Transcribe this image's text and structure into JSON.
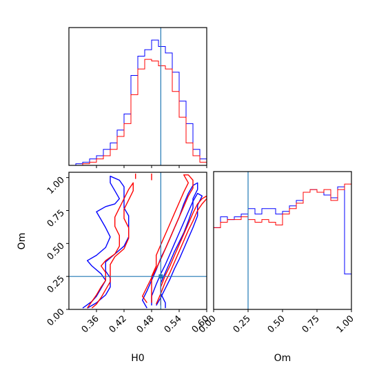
{
  "chart_data": {
    "type": "corner",
    "title": "",
    "truth": {
      "H0": 0.5,
      "Om": 0.25
    },
    "colors": {
      "red": "#ff0000",
      "blue": "#0000ff",
      "truth_line": "#1f77b4",
      "axes": "#000000"
    },
    "panels": [
      {
        "id": "hist-H0",
        "type": "histogram",
        "xlim": [
          0.3,
          0.6
        ],
        "xticks": [
          0.36,
          0.42,
          0.48,
          0.54,
          0.6
        ],
        "bins": [
          0.3,
          0.315,
          0.33,
          0.345,
          0.36,
          0.375,
          0.39,
          0.405,
          0.42,
          0.435,
          0.45,
          0.465,
          0.48,
          0.495,
          0.51,
          0.525,
          0.54,
          0.555,
          0.57,
          0.585,
          0.6
        ],
        "series": [
          {
            "name": "",
            "color": "blue",
            "counts": [
              0,
              1,
              2,
              4,
              6,
              10,
              14,
              22,
              32,
              56,
              68,
              72,
              78,
              74,
              70,
              58,
              40,
              26,
              10,
              4
            ]
          },
          {
            "name": "",
            "color": "red",
            "counts": [
              0,
              0,
              1,
              2,
              4,
              6,
              10,
              18,
              26,
              44,
              60,
              66,
              65,
              62,
              60,
              46,
              30,
              14,
              6,
              2
            ]
          }
        ]
      },
      {
        "id": "hist-Om",
        "type": "histogram",
        "xlabel": "Om",
        "xlim": [
          0.0,
          1.0
        ],
        "xticks": [
          0.0,
          0.25,
          0.5,
          0.75,
          1.0
        ],
        "tick_labels": [
          "0.00",
          "0.25",
          "0.50",
          "0.75",
          "1.00"
        ],
        "bins": [
          0.0,
          0.05,
          0.1,
          0.15,
          0.2,
          0.25,
          0.3,
          0.35,
          0.4,
          0.45,
          0.5,
          0.55,
          0.6,
          0.65,
          0.7,
          0.75,
          0.8,
          0.85,
          0.9,
          0.95,
          1.0
        ],
        "series": [
          {
            "name": "",
            "color": "blue",
            "counts": [
              60,
              68,
              66,
              68,
              70,
              74,
              70,
              74,
              74,
              70,
              72,
              76,
              80,
              86,
              88,
              86,
              84,
              82,
              90,
              26
            ]
          },
          {
            "name": "",
            "color": "red",
            "counts": [
              60,
              64,
              66,
              66,
              68,
              66,
              64,
              66,
              64,
              62,
              70,
              74,
              78,
              86,
              88,
              86,
              88,
              80,
              88,
              92
            ]
          }
        ]
      },
      {
        "id": "contour-H0-Om",
        "type": "contour",
        "xlabel": "H0",
        "ylabel": "Om",
        "xlim": [
          0.3,
          0.6
        ],
        "ylim": [
          0.0,
          1.04
        ],
        "xticks": [
          0.36,
          0.42,
          0.48,
          0.54,
          0.6
        ],
        "xtick_labels": [
          "0.36",
          "0.42",
          "0.48",
          "0.54",
          "0.60"
        ],
        "yticks": [
          0.0,
          0.25,
          0.5,
          0.75,
          1.0
        ],
        "ytick_labels": [
          "0.00",
          "0.25",
          "0.50",
          "0.75",
          "1.00"
        ],
        "contours": [
          {
            "color": "blue",
            "points": [
              [
                0.33,
                0.01
              ],
              [
                0.35,
                0.06
              ],
              [
                0.36,
                0.1
              ],
              [
                0.37,
                0.16
              ],
              [
                0.38,
                0.22
              ],
              [
                0.37,
                0.27
              ],
              [
                0.35,
                0.33
              ],
              [
                0.34,
                0.37
              ],
              [
                0.36,
                0.41
              ],
              [
                0.38,
                0.47
              ],
              [
                0.39,
                0.55
              ],
              [
                0.38,
                0.62
              ],
              [
                0.37,
                0.68
              ],
              [
                0.36,
                0.74
              ],
              [
                0.38,
                0.78
              ],
              [
                0.4,
                0.8
              ],
              [
                0.41,
                0.84
              ],
              [
                0.4,
                0.9
              ],
              [
                0.39,
                0.96
              ],
              [
                0.39,
                1.01
              ],
              [
                0.41,
                0.98
              ],
              [
                0.42,
                0.93
              ],
              [
                0.42,
                0.86
              ],
              [
                0.42,
                0.77
              ],
              [
                0.43,
                0.71
              ],
              [
                0.43,
                0.63
              ],
              [
                0.43,
                0.55
              ],
              [
                0.42,
                0.48
              ],
              [
                0.4,
                0.42
              ],
              [
                0.38,
                0.36
              ],
              [
                0.38,
                0.29
              ],
              [
                0.39,
                0.24
              ],
              [
                0.39,
                0.17
              ],
              [
                0.38,
                0.11
              ],
              [
                0.36,
                0.05
              ],
              [
                0.34,
                0.01
              ]
            ]
          },
          {
            "color": "blue",
            "points": [
              [
                0.47,
                0.01
              ],
              [
                0.46,
                0.07
              ],
              [
                0.47,
                0.14
              ],
              [
                0.48,
                0.22
              ],
              [
                0.49,
                0.3
              ],
              [
                0.5,
                0.39
              ],
              [
                0.51,
                0.46
              ],
              [
                0.52,
                0.54
              ],
              [
                0.53,
                0.62
              ],
              [
                0.54,
                0.7
              ],
              [
                0.55,
                0.8
              ],
              [
                0.56,
                0.88
              ],
              [
                0.57,
                0.94
              ],
              [
                0.58,
                0.96
              ],
              [
                0.58,
                0.91
              ],
              [
                0.57,
                0.84
              ],
              [
                0.57,
                0.77
              ],
              [
                0.56,
                0.67
              ],
              [
                0.55,
                0.58
              ],
              [
                0.54,
                0.51
              ],
              [
                0.53,
                0.44
              ],
              [
                0.52,
                0.36
              ],
              [
                0.51,
                0.28
              ],
              [
                0.5,
                0.2
              ],
              [
                0.5,
                0.12
              ],
              [
                0.51,
                0.05
              ],
              [
                0.51,
                0.01
              ]
            ]
          },
          {
            "color": "blue",
            "points": [
              [
                0.48,
                0.03
              ],
              [
                0.48,
                0.1
              ],
              [
                0.49,
                0.19
              ],
              [
                0.5,
                0.27
              ],
              [
                0.51,
                0.34
              ],
              [
                0.52,
                0.42
              ],
              [
                0.53,
                0.5
              ],
              [
                0.54,
                0.58
              ],
              [
                0.55,
                0.66
              ],
              [
                0.56,
                0.74
              ],
              [
                0.57,
                0.82
              ],
              [
                0.58,
                0.88
              ],
              [
                0.59,
                0.86
              ],
              [
                0.58,
                0.79
              ],
              [
                0.58,
                0.71
              ],
              [
                0.57,
                0.62
              ],
              [
                0.56,
                0.54
              ],
              [
                0.55,
                0.46
              ],
              [
                0.54,
                0.38
              ],
              [
                0.53,
                0.31
              ],
              [
                0.52,
                0.23
              ],
              [
                0.51,
                0.16
              ],
              [
                0.5,
                0.09
              ],
              [
                0.49,
                0.03
              ]
            ]
          },
          {
            "color": "red",
            "points": [
              [
                0.34,
                0.01
              ],
              [
                0.35,
                0.06
              ],
              [
                0.36,
                0.11
              ],
              [
                0.37,
                0.17
              ],
              [
                0.38,
                0.22
              ],
              [
                0.38,
                0.28
              ],
              [
                0.37,
                0.33
              ],
              [
                0.38,
                0.37
              ],
              [
                0.4,
                0.42
              ],
              [
                0.41,
                0.48
              ],
              [
                0.41,
                0.56
              ],
              [
                0.4,
                0.63
              ],
              [
                0.4,
                0.7
              ],
              [
                0.41,
                0.77
              ],
              [
                0.42,
                0.84
              ],
              [
                0.43,
                0.91
              ],
              [
                0.44,
                0.96
              ],
              [
                0.44,
                0.9
              ],
              [
                0.43,
                0.83
              ],
              [
                0.42,
                0.76
              ],
              [
                0.42,
                0.69
              ],
              [
                0.43,
                0.62
              ],
              [
                0.43,
                0.54
              ],
              [
                0.42,
                0.46
              ],
              [
                0.4,
                0.4
              ],
              [
                0.39,
                0.34
              ],
              [
                0.39,
                0.27
              ],
              [
                0.39,
                0.21
              ],
              [
                0.38,
                0.15
              ],
              [
                0.37,
                0.09
              ],
              [
                0.36,
                0.04
              ],
              [
                0.35,
                0.01
              ]
            ]
          },
          {
            "color": "red",
            "points": [
              [
                0.47,
                0.05
              ],
              [
                0.46,
                0.1
              ],
              [
                0.47,
                0.17
              ],
              [
                0.48,
                0.24
              ],
              [
                0.49,
                0.31
              ],
              [
                0.5,
                0.38
              ],
              [
                0.51,
                0.46
              ],
              [
                0.52,
                0.54
              ],
              [
                0.53,
                0.62
              ],
              [
                0.54,
                0.7
              ],
              [
                0.55,
                0.78
              ],
              [
                0.56,
                0.86
              ],
              [
                0.57,
                0.92
              ],
              [
                0.57,
                0.98
              ],
              [
                0.56,
                1.02
              ],
              [
                0.55,
                1.02
              ],
              [
                0.56,
                0.96
              ],
              [
                0.55,
                0.89
              ],
              [
                0.54,
                0.81
              ],
              [
                0.53,
                0.73
              ],
              [
                0.52,
                0.65
              ],
              [
                0.51,
                0.57
              ],
              [
                0.5,
                0.49
              ],
              [
                0.49,
                0.41
              ],
              [
                0.49,
                0.33
              ],
              [
                0.48,
                0.25
              ],
              [
                0.48,
                0.16
              ],
              [
                0.48,
                0.09
              ],
              [
                0.48,
                0.05
              ]
            ]
          },
          {
            "color": "red",
            "points": [
              [
                0.49,
                0.04
              ],
              [
                0.5,
                0.12
              ],
              [
                0.51,
                0.21
              ],
              [
                0.52,
                0.28
              ],
              [
                0.53,
                0.36
              ],
              [
                0.54,
                0.44
              ],
              [
                0.55,
                0.52
              ],
              [
                0.56,
                0.6
              ],
              [
                0.57,
                0.67
              ],
              [
                0.58,
                0.75
              ],
              [
                0.59,
                0.8
              ],
              [
                0.6,
                0.84
              ],
              [
                0.6,
                0.86
              ],
              [
                0.59,
                0.84
              ],
              [
                0.58,
                0.8
              ],
              [
                0.57,
                0.73
              ],
              [
                0.56,
                0.65
              ],
              [
                0.55,
                0.57
              ],
              [
                0.54,
                0.49
              ],
              [
                0.53,
                0.41
              ],
              [
                0.52,
                0.33
              ],
              [
                0.51,
                0.26
              ],
              [
                0.5,
                0.17
              ],
              [
                0.5,
                0.08
              ],
              [
                0.5,
                0.03
              ]
            ]
          },
          {
            "color": "red",
            "points": [
              [
                0.48,
                1.03
              ],
              [
                0.48,
                0.98
              ]
            ]
          },
          {
            "color": "red",
            "points": [
              [
                0.445,
                1.03
              ],
              [
                0.445,
                0.99
              ]
            ]
          }
        ]
      }
    ]
  }
}
